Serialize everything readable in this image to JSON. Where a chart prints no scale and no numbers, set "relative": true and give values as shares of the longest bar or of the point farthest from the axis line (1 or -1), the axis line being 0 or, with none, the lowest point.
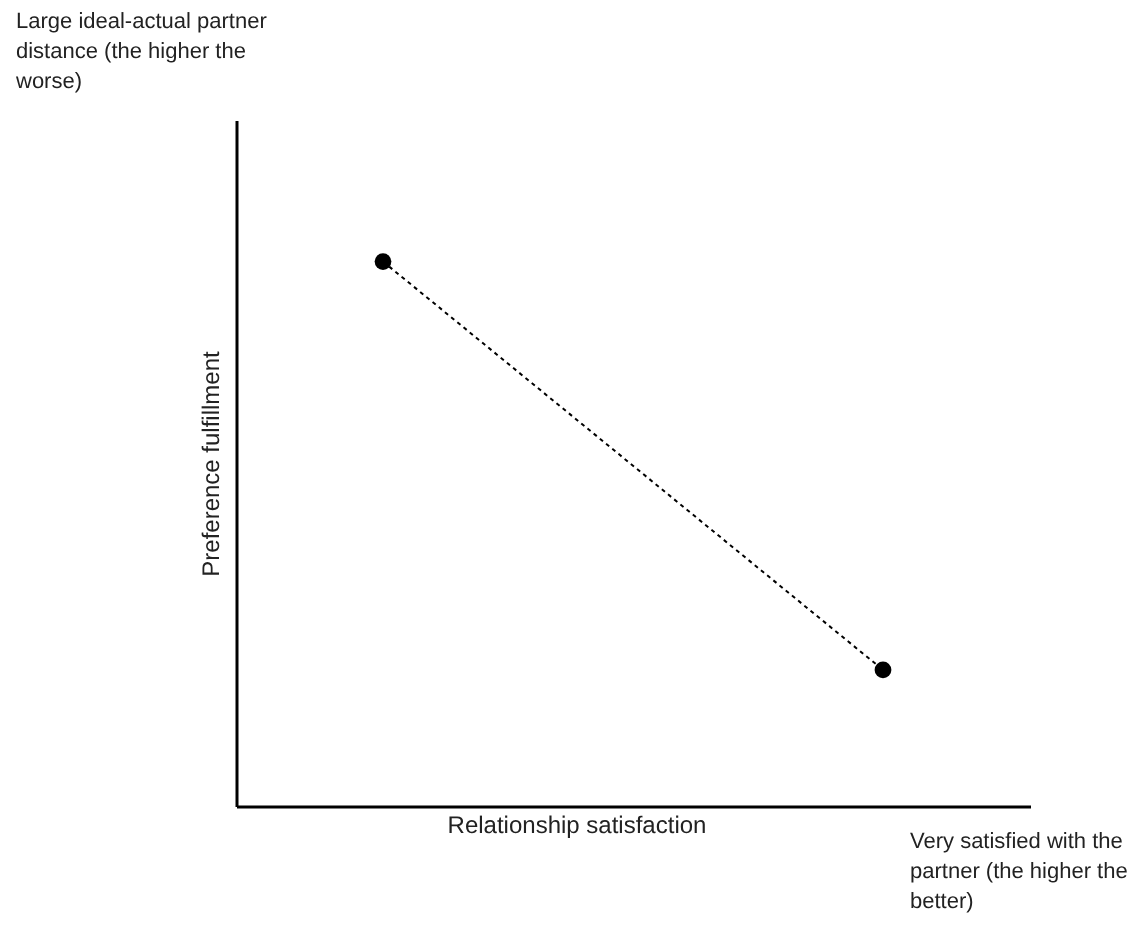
{
  "chart_data": {
    "type": "line",
    "relative": true,
    "categories": [
      null,
      null
    ],
    "series": [
      {
        "color": "#000000",
        "values": [
          1,
          0.25
        ]
      }
    ],
    "xlabel": "Relationship satisfaction",
    "ylabel": "Preference fulfillment",
    "annotations": [
      "Large ideal-actual partner distance (the higher the worse)",
      "Very satisfied with the partner (the higher the better)"
    ],
    "marker": "circle",
    "line_style": "dotted",
    "tick_labels": false,
    "grid": false
  }
}
